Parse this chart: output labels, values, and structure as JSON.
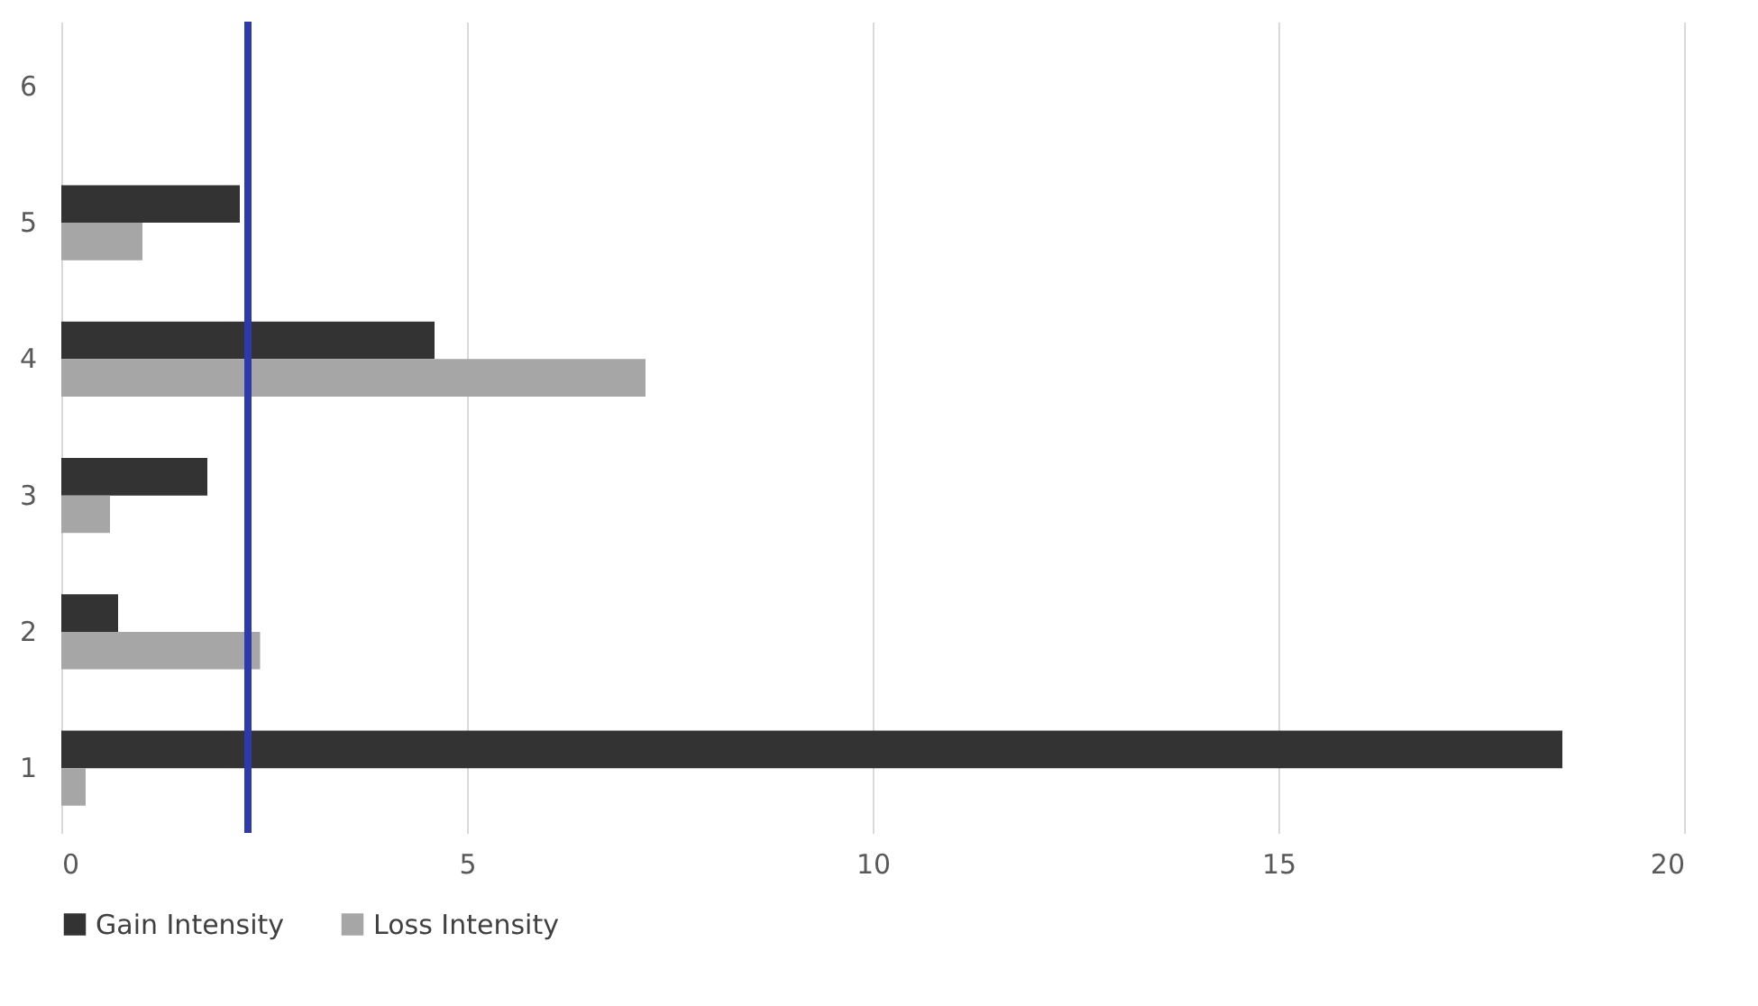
{
  "chart_data": {
    "type": "bar",
    "orientation": "horizontal",
    "categories": [
      "6",
      "5",
      "4",
      "3",
      "2",
      "1"
    ],
    "series": [
      {
        "name": "Gain Intensity",
        "color": "#333333",
        "values": [
          null,
          2.2,
          4.6,
          1.8,
          0.7,
          18.5
        ]
      },
      {
        "name": "Loss Intensity",
        "color": "#a6a6a6",
        "values": [
          null,
          1.0,
          7.2,
          0.6,
          2.45,
          0.3
        ]
      }
    ],
    "xlim": [
      0,
      20
    ],
    "xticks": [
      0,
      5,
      10,
      15,
      20
    ],
    "grid": "x",
    "legend": "bottom",
    "ref_lines": [
      {
        "axis": "x",
        "value": 2.3,
        "color": "#2b3bab"
      }
    ]
  }
}
